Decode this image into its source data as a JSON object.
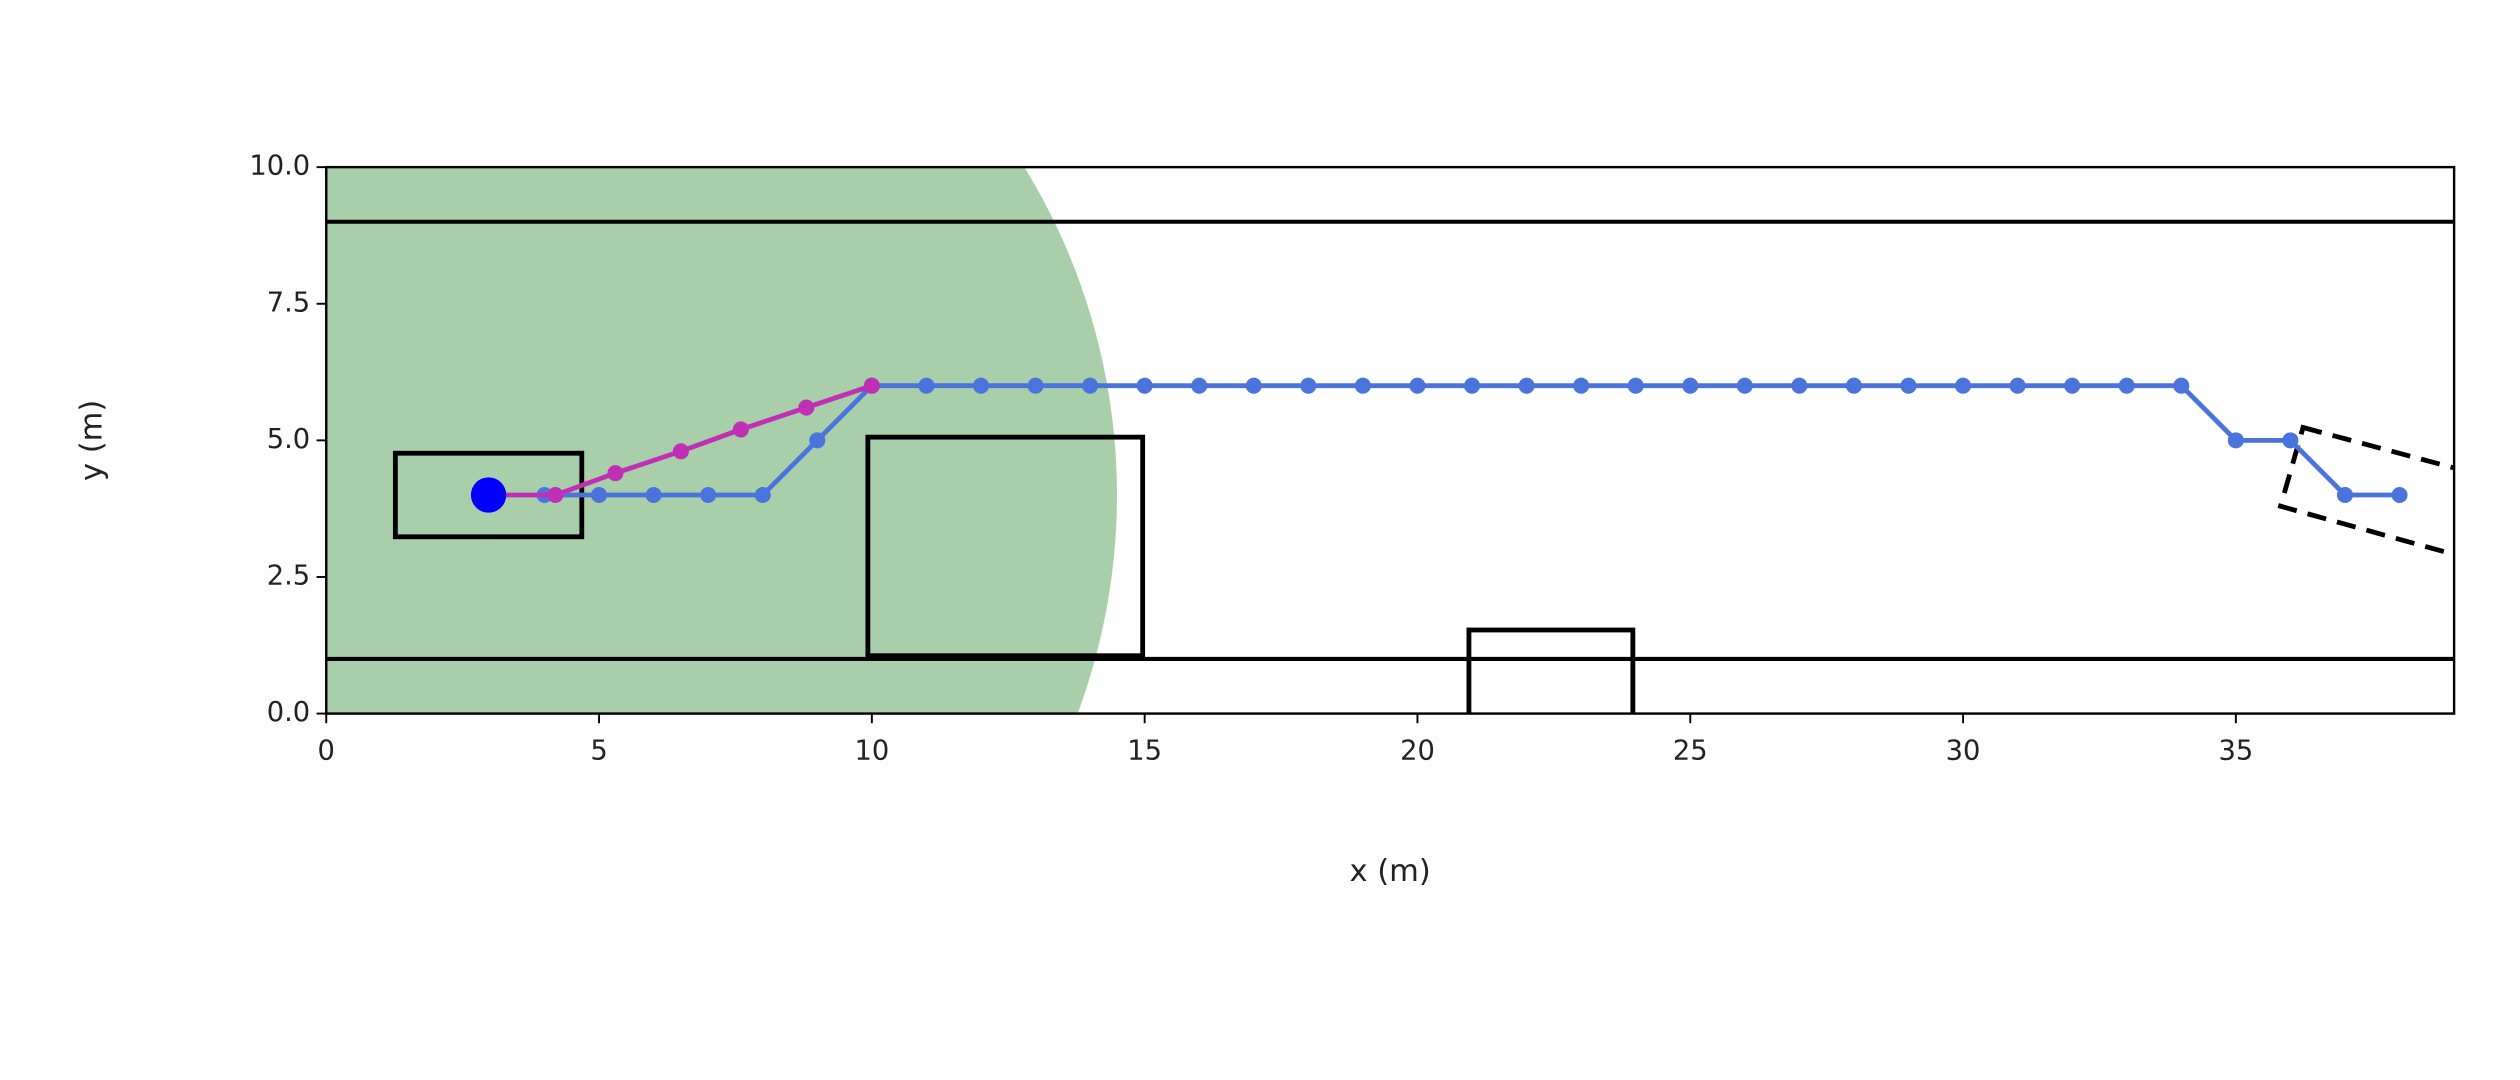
{
  "chart_data": {
    "type": "line",
    "xlabel": "x (m)",
    "ylabel": "y (m)",
    "xlim": [
      0,
      39
    ],
    "ylim": [
      0,
      10
    ],
    "xticks": [
      0,
      5,
      10,
      15,
      20,
      25,
      30,
      35
    ],
    "yticks": [
      {
        "value": 0,
        "label": "0.0"
      },
      2.5,
      {
        "value": 5,
        "label": "5.0"
      },
      7.5,
      {
        "value": 10,
        "label": "10.0"
      }
    ],
    "grid": false,
    "series": [
      {
        "color": "#4a74dc",
        "x": [
          4,
          5,
          6,
          7,
          8,
          9,
          10,
          11,
          12,
          13,
          14,
          15,
          16,
          17,
          18,
          19,
          20,
          21,
          22,
          23,
          24,
          25,
          26,
          27,
          28,
          29,
          30,
          31,
          32,
          33,
          34,
          35,
          36,
          37,
          38
        ],
        "values": [
          4,
          4,
          4,
          4,
          4,
          5,
          6,
          6,
          6,
          6,
          6,
          6,
          6,
          6,
          6,
          6,
          6,
          6,
          6,
          6,
          6,
          6,
          6,
          6,
          6,
          6,
          6,
          6,
          6,
          6,
          6,
          5,
          5,
          4,
          4
        ]
      },
      {
        "color": "#c030b4",
        "x": [
          3,
          4.2,
          5.3,
          6.5,
          7.6,
          8.8,
          10
        ],
        "values": [
          4,
          4,
          4.4,
          4.8,
          5.2,
          5.6,
          6
        ]
      }
    ]
  }
}
